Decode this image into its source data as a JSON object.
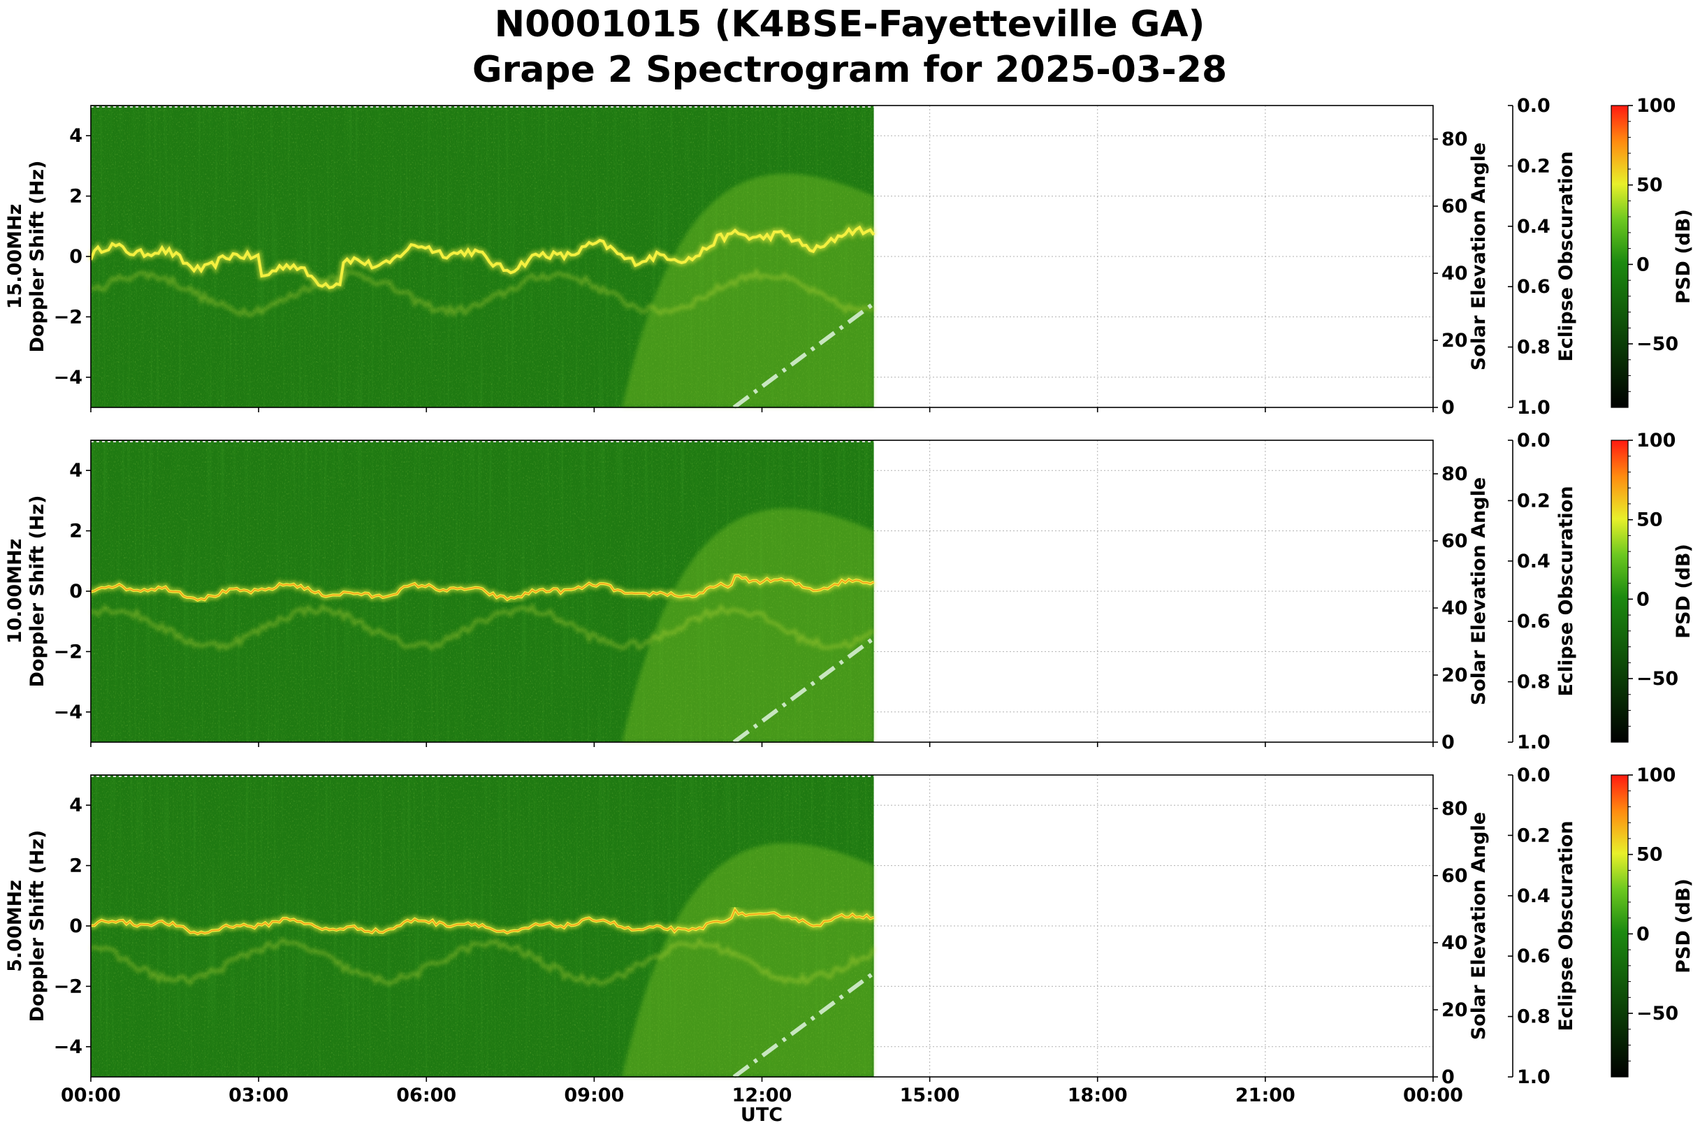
{
  "title_line1": "N0001015 (K4BSE-Fayetteville GA)",
  "title_line2": "Grape 2 Spectrogram for 2025-03-28",
  "xlabel": "UTC",
  "ylabel_common": "Doppler Shift (Hz)",
  "right_axis_label": "Solar Elevation Angle",
  "eclipse_axis_label": "Eclipse Obscuration",
  "colorbar_label": "PSD (dB)",
  "colors": {
    "spectrogram_dark": "#1f7a12",
    "spectrogram_mid": "#3fa21c",
    "ridge": "#f4f040",
    "ridge_core": "#f08a10",
    "solar_line": "#c8e6c0",
    "grid": "#b0b0b0"
  },
  "chart_data": [
    {
      "type": "heatmap",
      "panel_label": "15.00MHz",
      "ylabel": "Doppler Shift (Hz)",
      "xlim": [
        "00:00",
        "24:00"
      ],
      "ylim": [
        -5,
        5
      ],
      "data_extent_hours": [
        0,
        14
      ],
      "x_ticks": [
        "00:00",
        "03:00",
        "06:00",
        "09:00",
        "12:00",
        "15:00",
        "18:00",
        "21:00",
        "00:00"
      ],
      "y_ticks": [
        -4,
        -2,
        0,
        2,
        4
      ],
      "solar_elevation_ticks": [
        0,
        20,
        40,
        60,
        80
      ],
      "eclipse_ticks": [
        "0.0",
        "0.2",
        "0.4",
        "0.6",
        "0.8",
        "1.0"
      ],
      "colorbar_ticks": [
        100,
        50,
        0,
        -50
      ],
      "colorbar_range": [
        -90,
        100
      ],
      "solar_elevation": {
        "x_hours": [
          11.5,
          14.0
        ],
        "elevation_deg": [
          0,
          31
        ]
      },
      "grid": true
    },
    {
      "type": "heatmap",
      "panel_label": "10.00MHz",
      "ylabel": "Doppler Shift (Hz)",
      "xlim": [
        "00:00",
        "24:00"
      ],
      "ylim": [
        -5,
        5
      ],
      "data_extent_hours": [
        0,
        14
      ],
      "x_ticks": [
        "00:00",
        "03:00",
        "06:00",
        "09:00",
        "12:00",
        "15:00",
        "18:00",
        "21:00",
        "00:00"
      ],
      "y_ticks": [
        -4,
        -2,
        0,
        2,
        4
      ],
      "solar_elevation_ticks": [
        0,
        20,
        40,
        60,
        80
      ],
      "eclipse_ticks": [
        "0.0",
        "0.2",
        "0.4",
        "0.6",
        "0.8",
        "1.0"
      ],
      "colorbar_ticks": [
        100,
        50,
        0,
        -50
      ],
      "colorbar_range": [
        -90,
        100
      ],
      "solar_elevation": {
        "x_hours": [
          11.5,
          14.0
        ],
        "elevation_deg": [
          0,
          31
        ]
      },
      "grid": true
    },
    {
      "type": "heatmap",
      "panel_label": "5.00MHz",
      "ylabel": "Doppler Shift (Hz)",
      "xlim": [
        "00:00",
        "24:00"
      ],
      "ylim": [
        -5,
        5
      ],
      "data_extent_hours": [
        0,
        14
      ],
      "x_ticks": [
        "00:00",
        "03:00",
        "06:00",
        "09:00",
        "12:00",
        "15:00",
        "18:00",
        "21:00",
        "00:00"
      ],
      "y_ticks": [
        -4,
        -2,
        0,
        2,
        4
      ],
      "solar_elevation_ticks": [
        0,
        20,
        40,
        60,
        80
      ],
      "eclipse_ticks": [
        "0.0",
        "0.2",
        "0.4",
        "0.6",
        "0.8",
        "1.0"
      ],
      "colorbar_ticks": [
        100,
        50,
        0,
        -50
      ],
      "colorbar_range": [
        -90,
        100
      ],
      "solar_elevation": {
        "x_hours": [
          11.5,
          14.0
        ],
        "elevation_deg": [
          0,
          31
        ]
      },
      "grid": true
    }
  ]
}
